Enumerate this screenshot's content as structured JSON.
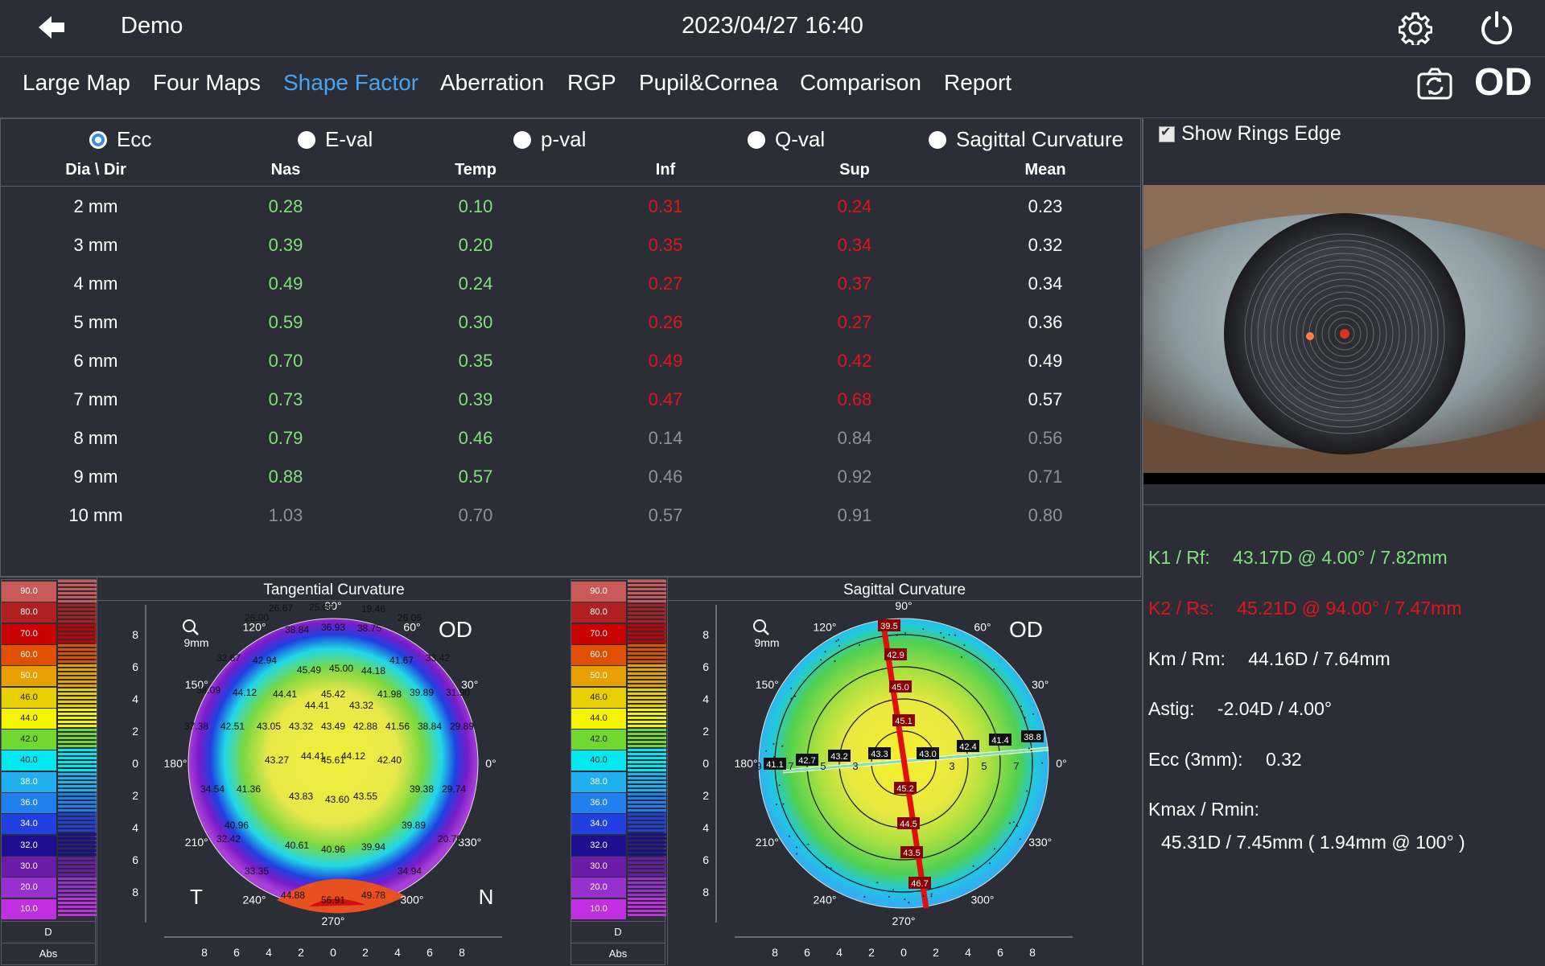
{
  "header": {
    "patient": "Demo",
    "datetime": "2023/04/27 16:40"
  },
  "tabs": [
    {
      "label": "Large Map",
      "active": false
    },
    {
      "label": "Four Maps",
      "active": false
    },
    {
      "label": "Shape Factor",
      "active": true
    },
    {
      "label": "Aberration",
      "active": false
    },
    {
      "label": "RGP",
      "active": false
    },
    {
      "label": "Pupil&Cornea",
      "active": false
    },
    {
      "label": "Comparison",
      "active": false
    },
    {
      "label": "Report",
      "active": false
    }
  ],
  "eye": "OD",
  "radios": [
    {
      "label": "Ecc",
      "selected": true
    },
    {
      "label": "E-val",
      "selected": false
    },
    {
      "label": "p-val",
      "selected": false
    },
    {
      "label": "Q-val",
      "selected": false
    },
    {
      "label": "Sagittal Curvature",
      "selected": false
    }
  ],
  "table": {
    "headers": [
      "Dia \\ Dir",
      "Nas",
      "Temp",
      "Inf",
      "Sup",
      "Mean"
    ],
    "rows": [
      [
        "2 mm",
        "0.28",
        "0.10",
        "0.31",
        "0.24",
        "0.23"
      ],
      [
        "3 mm",
        "0.39",
        "0.20",
        "0.35",
        "0.34",
        "0.32"
      ],
      [
        "4 mm",
        "0.49",
        "0.24",
        "0.27",
        "0.37",
        "0.34"
      ],
      [
        "5 mm",
        "0.59",
        "0.30",
        "0.26",
        "0.27",
        "0.36"
      ],
      [
        "6 mm",
        "0.70",
        "0.35",
        "0.49",
        "0.42",
        "0.49"
      ],
      [
        "7 mm",
        "0.73",
        "0.39",
        "0.47",
        "0.68",
        "0.57"
      ],
      [
        "8 mm",
        "0.79",
        "0.46",
        "0.14",
        "0.84",
        "0.56"
      ],
      [
        "9 mm",
        "0.88",
        "0.57",
        "0.46",
        "0.92",
        "0.71"
      ],
      [
        "10 mm",
        "1.03",
        "0.70",
        "0.57",
        "0.91",
        "0.80"
      ]
    ],
    "colors": [
      [
        "white",
        "green",
        "green",
        "red",
        "red",
        "white"
      ],
      [
        "white",
        "green",
        "green",
        "red",
        "red",
        "white"
      ],
      [
        "white",
        "green",
        "green",
        "red",
        "red",
        "white"
      ],
      [
        "white",
        "green",
        "green",
        "red",
        "red",
        "white"
      ],
      [
        "white",
        "green",
        "green",
        "red",
        "red",
        "white"
      ],
      [
        "white",
        "green",
        "green",
        "red",
        "red",
        "white"
      ],
      [
        "white",
        "green",
        "green",
        "gray",
        "gray",
        "gray"
      ],
      [
        "white",
        "green",
        "green",
        "gray",
        "gray",
        "gray"
      ],
      [
        "white",
        "gray",
        "gray",
        "gray",
        "gray",
        "gray"
      ]
    ]
  },
  "right": {
    "show_rings_edge": "Show Rings Edge",
    "k1_label": "K1 / Rf:",
    "k1_value": "43.17D @ 4.00° / 7.82mm",
    "k2_label": "K2 / Rs:",
    "k2_value": "45.21D @ 94.00° / 7.47mm",
    "km_label": "Km / Rm:",
    "km_value": "44.16D / 7.64mm",
    "astig_label": "Astig:",
    "astig_value": "-2.04D / 4.00°",
    "ecc_label": "Ecc (3mm):",
    "ecc_value": "0.32",
    "kmax_label": "Kmax / Rmin:",
    "kmax_value": "45.31D / 7.45mm ( 1.94mm @ 100° )"
  },
  "scale": {
    "values": [
      "90.0",
      "80.0",
      "70.0",
      "60.0",
      "50.0",
      "46.0",
      "44.0",
      "42.0",
      "40.0",
      "38.0",
      "36.0",
      "34.0",
      "32.0",
      "30.0",
      "20.0",
      "10.0"
    ],
    "colors": [
      "#c85a5a",
      "#b02020",
      "#c80000",
      "#e05000",
      "#e8a000",
      "#e8d000",
      "#f5f500",
      "#70d830",
      "#00e8f0",
      "#20b0f0",
      "#2080f0",
      "#2040e0",
      "#1c1090",
      "#6a1ca8",
      "#9830d0",
      "#c030e0"
    ],
    "unit": "D",
    "mode": "Abs"
  },
  "maps": {
    "left_title": "Tangential Curvature",
    "right_title": "Sagittal Curvature",
    "zoom": "9mm",
    "eye": "OD",
    "temporal": "T",
    "nasal": "N",
    "axis_ticks": [
      "8",
      "6",
      "4",
      "2",
      "0",
      "2",
      "4",
      "6",
      "8"
    ],
    "angles": [
      "90°",
      "60°",
      "30°",
      "0°",
      "330°",
      "300°",
      "270°",
      "240°",
      "210°",
      "180°",
      "150°",
      "120°"
    ],
    "tangential_values": [
      "26.67",
      "25.06",
      "19.46",
      "26.00",
      "26.06",
      "38.84",
      "36.93",
      "38.75",
      "32.67",
      "42.94",
      "45.49",
      "45.00",
      "44.18",
      "41.67",
      "33.42",
      "38.09",
      "44.12",
      "44.41",
      "45.42",
      "41.98",
      "39.89",
      "31.90",
      "44.41",
      "43.32",
      "37.38",
      "42.51",
      "43.05",
      "43.32",
      "43.49",
      "42.88",
      "41.56",
      "38.84",
      "29.89",
      "44.41",
      "44.12",
      "43.27",
      "45.61",
      "42.40",
      "34.54",
      "41.36",
      "39.38",
      "29.74",
      "43.83",
      "43.60",
      "43.55",
      "40.96",
      "39.89",
      "32.42",
      "20.79",
      "40.61",
      "40.96",
      "39.94",
      "33.35",
      "34.94",
      "44.88",
      "56.91",
      "49.78"
    ],
    "sagittal_values": [
      "39.5",
      "42.9",
      "45.0",
      "45.1",
      "43.3",
      "43.0",
      "42.4",
      "41.4",
      "38.8",
      "43.2",
      "42.7",
      "41.1",
      "45.2",
      "44.5",
      "43.5",
      "46.7"
    ],
    "ring_numbers": [
      "9",
      "7",
      "5",
      "3",
      "3",
      "5",
      "7"
    ]
  }
}
